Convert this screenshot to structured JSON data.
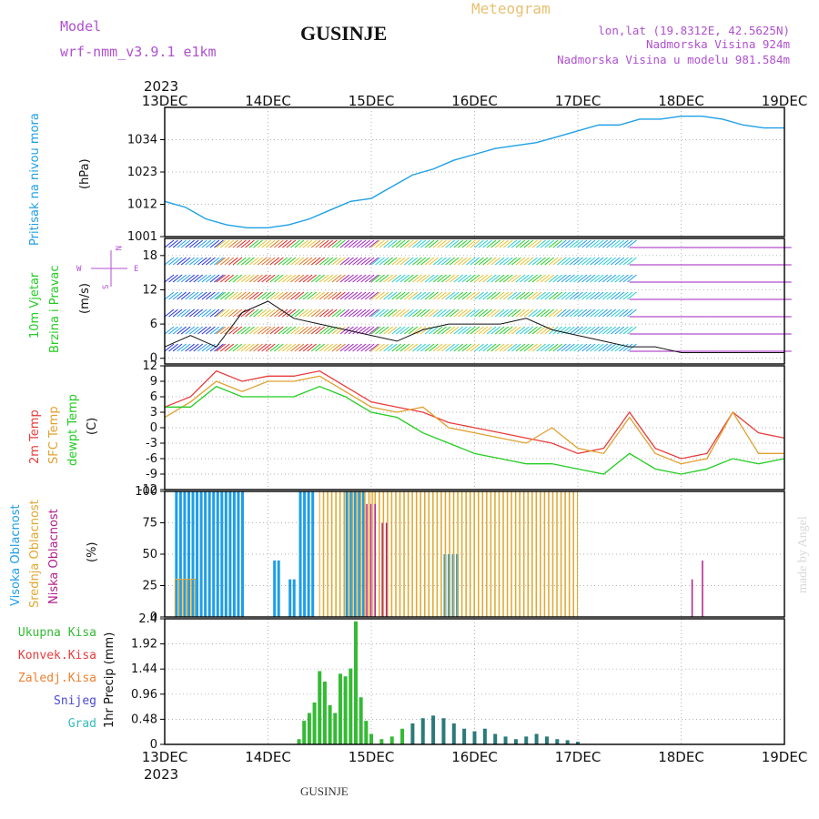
{
  "header": {
    "model_label": "Model",
    "model_name": "wrf-nmm_v3.9.1  e1km",
    "title": "GUSINJE",
    "meteogram_label": "Meteogram",
    "lonlat": "lon,lat (19.8312E, 42.5625N)",
    "elevation": "Nadmorska Visina 924m",
    "model_elevation": "Nadmorska Visina u modelu 981.584m",
    "footer": "GUSINJE",
    "watermark": "made by Angel"
  },
  "colors": {
    "pressure": "#1ea0e6",
    "temp2m": "#e83c3c",
    "sfctemp": "#e0a030",
    "dewpt": "#22cc22",
    "cloud_high": "#1e9ee8",
    "cloud_mid": "#e0a830",
    "cloud_low": "#b0208c",
    "precip_total": "#33bb33",
    "precip_conv": "#e83c3c",
    "precip_frozen": "#f08030",
    "snow": "#4a4ad0",
    "graupel": "#33bbbb",
    "header_purple": "#b050d0",
    "meteogram_orange": "#e8c070"
  },
  "time_axis": {
    "year": "2023",
    "ticks": [
      "13DEC",
      "14DEC",
      "15DEC",
      "16DEC",
      "17DEC",
      "18DEC",
      "19DEC"
    ]
  },
  "chart_data": [
    {
      "type": "line",
      "ylabel_lines": [
        "Pritisak na nivou mora",
        "(hPa)"
      ],
      "yticks": [
        "1001",
        "1012",
        "1023",
        "1034"
      ],
      "ylim": [
        1001,
        1045
      ],
      "x_days": [
        0,
        0.2,
        0.4,
        0.6,
        0.8,
        1.0,
        1.2,
        1.4,
        1.6,
        1.8,
        2.0,
        2.2,
        2.4,
        2.6,
        2.8,
        3.0,
        3.2,
        3.4,
        3.6,
        3.8,
        4.0,
        4.2,
        4.4,
        4.6,
        4.8,
        5.0,
        5.2,
        5.4,
        5.6,
        5.8,
        6.0
      ],
      "series": [
        {
          "values": [
            1013,
            1011,
            1007,
            1005,
            1004,
            1004,
            1005,
            1007,
            1010,
            1013,
            1014,
            1018,
            1022,
            1024,
            1027,
            1029,
            1031,
            1032,
            1033,
            1035,
            1037,
            1039,
            1039,
            1041,
            1041,
            1042,
            1042,
            1041,
            1039,
            1038,
            1038
          ]
        }
      ]
    },
    {
      "type": "line",
      "ylabel_lines": [
        "10m Vjetar",
        "Brzina i Pravac",
        "(m/s)"
      ],
      "yticks": [
        "0",
        "6",
        "12",
        "18"
      ],
      "ylim": [
        -1,
        21
      ],
      "x_days": [
        0,
        0.25,
        0.5,
        0.75,
        1.0,
        1.25,
        1.5,
        1.75,
        2.0,
        2.25,
        2.5,
        2.75,
        3.0,
        3.25,
        3.5,
        3.75,
        4.0,
        4.25,
        4.5,
        4.75,
        5.0,
        5.25,
        5.5,
        5.75,
        6.0
      ],
      "series": [
        {
          "values": [
            2,
            4,
            2,
            8,
            10,
            7,
            6,
            5,
            4,
            3,
            5,
            6,
            6,
            6,
            7,
            5,
            4,
            3,
            2,
            2,
            1,
            1,
            1,
            1,
            1
          ]
        }
      ],
      "direction_key": {
        "n": "N",
        "w": "W",
        "e": "E",
        "s": "S"
      }
    },
    {
      "type": "line",
      "ylabel_lines": [
        "2m Temp",
        "SFC Temp",
        "dewpt Temp",
        "(C)"
      ],
      "yticks": [
        "-12",
        "-9",
        "-6",
        "-3",
        "0",
        "3",
        "6",
        "9",
        "12"
      ],
      "ylim": [
        -12,
        12
      ],
      "x_days": [
        0,
        0.25,
        0.5,
        0.75,
        1.0,
        1.25,
        1.5,
        1.75,
        2.0,
        2.25,
        2.5,
        2.75,
        3.0,
        3.25,
        3.5,
        3.75,
        4.0,
        4.25,
        4.5,
        4.75,
        5.0,
        5.25,
        5.5,
        5.75,
        6.0
      ],
      "series": [
        {
          "name": "2m Temp",
          "values": [
            4,
            6,
            11,
            9,
            10,
            10,
            11,
            8,
            5,
            4,
            3,
            1,
            0,
            -1,
            -2,
            -3,
            -5,
            -4,
            3,
            -4,
            -6,
            -5,
            3,
            -1,
            -2
          ]
        },
        {
          "name": "SFC Temp",
          "values": [
            2,
            5,
            9,
            7,
            9,
            9,
            10,
            7,
            4,
            3,
            4,
            0,
            -1,
            -2,
            -3,
            0,
            -4,
            -5,
            2,
            -5,
            -7,
            -6,
            3,
            -5,
            -5
          ]
        },
        {
          "name": "dewpt Temp",
          "values": [
            4,
            4,
            8,
            6,
            6,
            6,
            8,
            6,
            3,
            2,
            -1,
            -3,
            -5,
            -6,
            -7,
            -7,
            -8,
            -9,
            -5,
            -8,
            -9,
            -8,
            -6,
            -7,
            -6
          ]
        }
      ]
    },
    {
      "type": "bar",
      "ylabel_lines": [
        "Visoka Oblacnost",
        "Srednja Oblacnost",
        "Niska Oblacnost",
        "(%)"
      ],
      "yticks": [
        "0",
        "25",
        "50",
        "75",
        "100"
      ],
      "ylim": [
        0,
        100
      ],
      "series": [
        {
          "name": "Visoka Oblacnost",
          "blocks": [
            [
              0.1,
              0.75,
              100
            ],
            [
              1.05,
              1.12,
              45
            ],
            [
              1.2,
              1.25,
              30
            ],
            [
              1.3,
              1.45,
              100
            ],
            [
              1.75,
              1.95,
              100
            ],
            [
              2.7,
              2.85,
              50
            ]
          ]
        },
        {
          "name": "Srednja Oblacnost",
          "blocks": [
            [
              0.1,
              0.3,
              30
            ],
            [
              1.5,
              2.0,
              100
            ],
            [
              2.0,
              4.0,
              100
            ]
          ]
        },
        {
          "name": "Niska Oblacnost",
          "blocks": [
            [
              1.95,
              2.05,
              90
            ],
            [
              2.1,
              2.15,
              75
            ],
            [
              5.1,
              5.12,
              30
            ],
            [
              5.2,
              5.22,
              45
            ]
          ]
        }
      ]
    },
    {
      "type": "bar",
      "ylabel_lines": [
        "1hr Precip (mm)"
      ],
      "yticks": [
        "0",
        "0.48",
        "0.96",
        "1.44",
        "1.92",
        "2.4"
      ],
      "ylim": [
        0,
        2.4
      ],
      "legend": [
        "Ukupna Kisa",
        "Konvek.Kisa",
        "Zaledj.Kisa",
        "Snijeg",
        "Grad"
      ],
      "x_days": [
        1.3,
        1.35,
        1.4,
        1.45,
        1.5,
        1.55,
        1.6,
        1.65,
        1.7,
        1.75,
        1.8,
        1.85,
        1.9,
        1.95,
        2.0,
        2.1,
        2.2,
        2.3,
        2.4,
        2.5,
        2.6,
        2.7,
        2.8,
        2.9,
        3.0,
        3.1,
        3.2,
        3.3,
        3.4,
        3.5,
        3.6,
        3.7,
        3.8,
        3.9,
        4.0
      ],
      "series": [
        {
          "name": "Ukupna Kisa",
          "values": [
            0.1,
            0.45,
            0.6,
            0.8,
            1.4,
            1.2,
            0.75,
            0.6,
            1.35,
            1.3,
            1.45,
            2.35,
            0.9,
            0.45,
            0.2,
            0.1,
            0.15,
            0.3,
            0.4,
            0.5,
            0.55,
            0.5,
            0.4,
            0.3,
            0.25,
            0.3,
            0.2,
            0.15,
            0.1,
            0.15,
            0.2,
            0.15,
            0.1,
            0.08,
            0.05
          ]
        }
      ]
    }
  ]
}
